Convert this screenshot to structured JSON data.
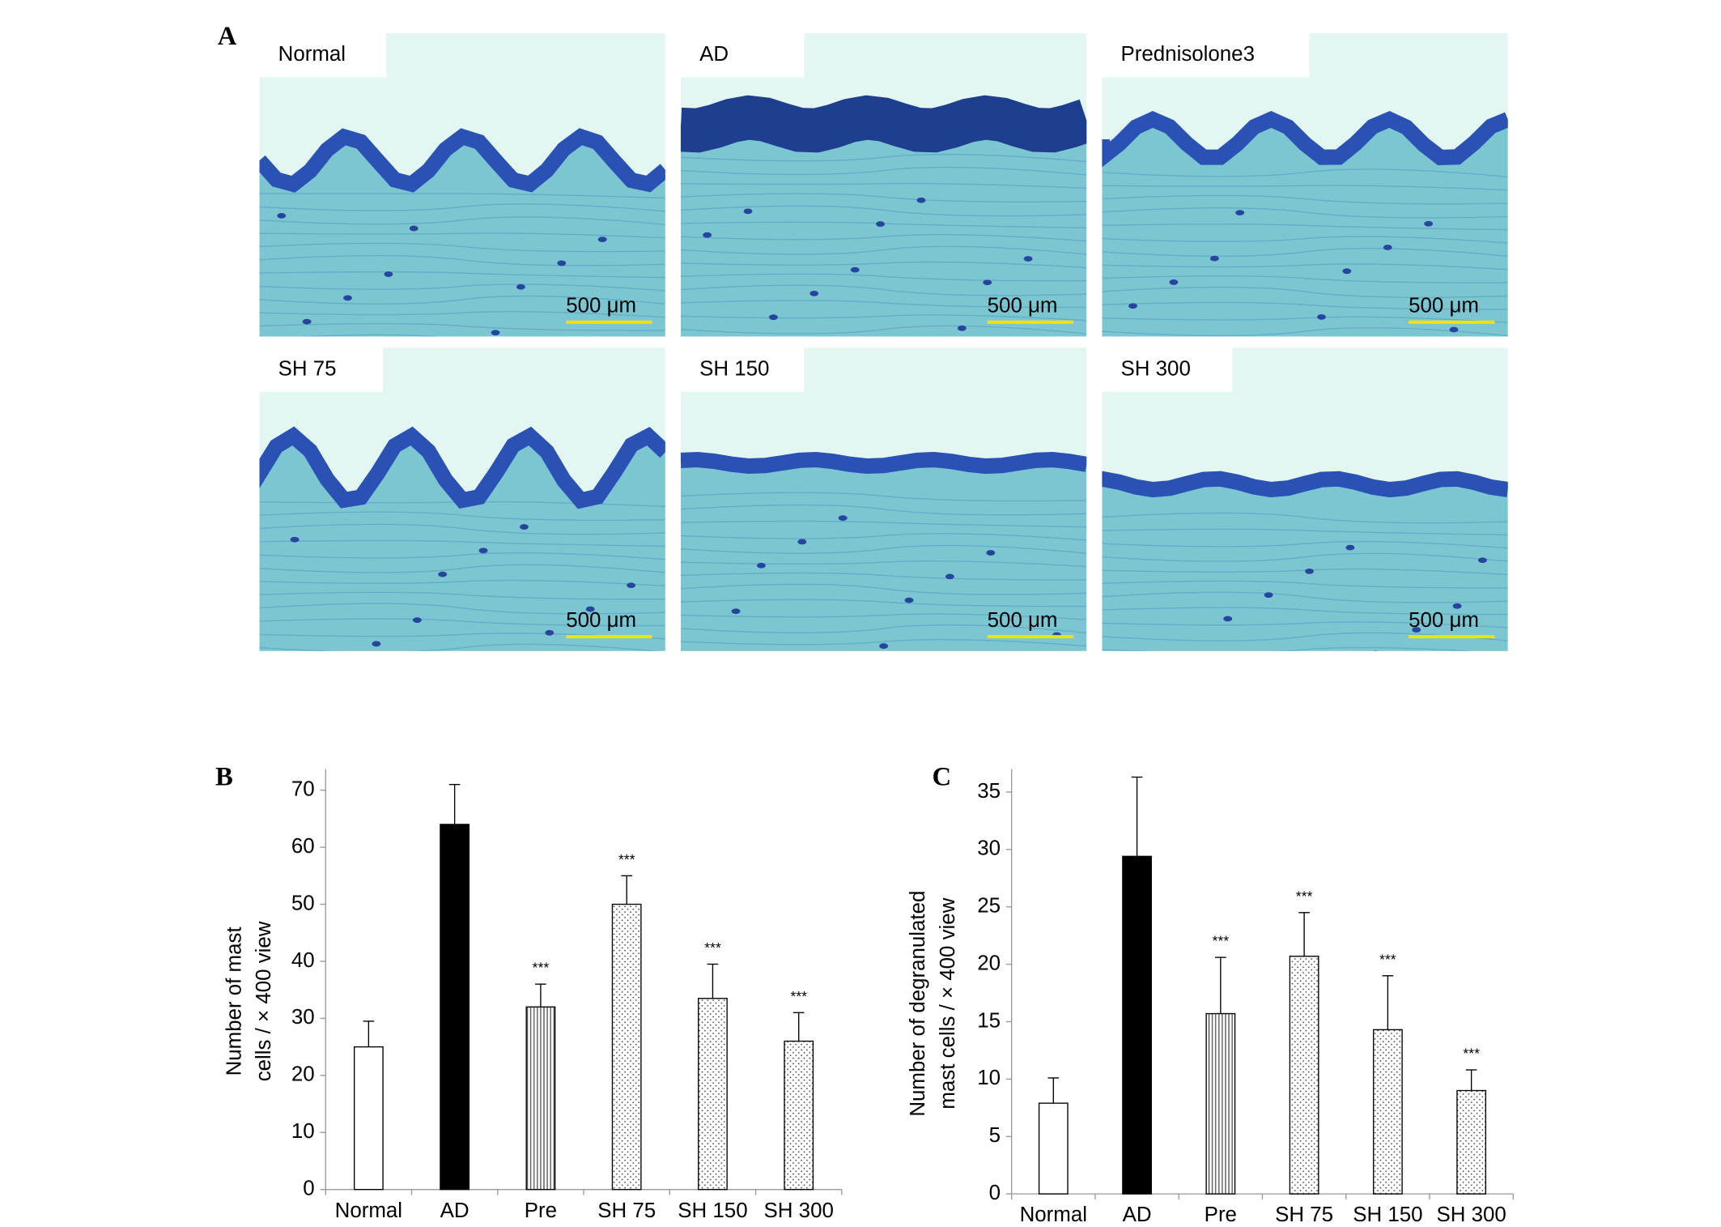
{
  "panel_a": {
    "label": "A",
    "images": [
      {
        "label": "Normal",
        "scale": "500 μm"
      },
      {
        "label": "AD",
        "scale": "500 μm"
      },
      {
        "label": "Prednisolone3",
        "scale": "500 μm"
      },
      {
        "label": "SH 75",
        "scale": "500 μm"
      },
      {
        "label": "SH 150",
        "scale": "500 μm"
      },
      {
        "label": "SH 300",
        "scale": "500 μm"
      }
    ]
  },
  "chart_data": [
    {
      "type": "bar",
      "label": "B",
      "ylabel": [
        "Number of mast",
        "cells / × 400 view"
      ],
      "categories": [
        "Normal",
        "AD",
        "Pre",
        "SH 75",
        "SH 150",
        "SH 300"
      ],
      "values": [
        25,
        64,
        32,
        50,
        33.5,
        26
      ],
      "errors": [
        4.5,
        7,
        4,
        5,
        6,
        5
      ],
      "significance": [
        null,
        null,
        "***",
        "***",
        "***",
        "***"
      ],
      "patterns": [
        "none",
        "solid",
        "lines",
        "dots",
        "dots",
        "dots"
      ],
      "ylim": [
        0,
        73.7
      ],
      "yticks": [
        0,
        10,
        20,
        30,
        40,
        50,
        60,
        70
      ]
    },
    {
      "type": "bar",
      "label": "C",
      "ylabel": [
        "Number of degranulated",
        "mast cells / × 400 view"
      ],
      "categories": [
        "Normal",
        "AD",
        "Pre",
        "SH 75",
        "SH 150",
        "SH 300"
      ],
      "values": [
        7.9,
        29.4,
        15.7,
        20.7,
        14.3,
        9
      ],
      "errors": [
        2.2,
        6.9,
        4.9,
        3.8,
        4.7,
        1.8
      ],
      "significance": [
        null,
        null,
        "***",
        "***",
        "***",
        "***"
      ],
      "patterns": [
        "none",
        "solid",
        "lines",
        "dots",
        "dots",
        "dots"
      ],
      "ylim": [
        0,
        37
      ],
      "yticks": [
        0,
        5,
        10,
        15,
        20,
        25,
        30,
        35
      ]
    }
  ]
}
